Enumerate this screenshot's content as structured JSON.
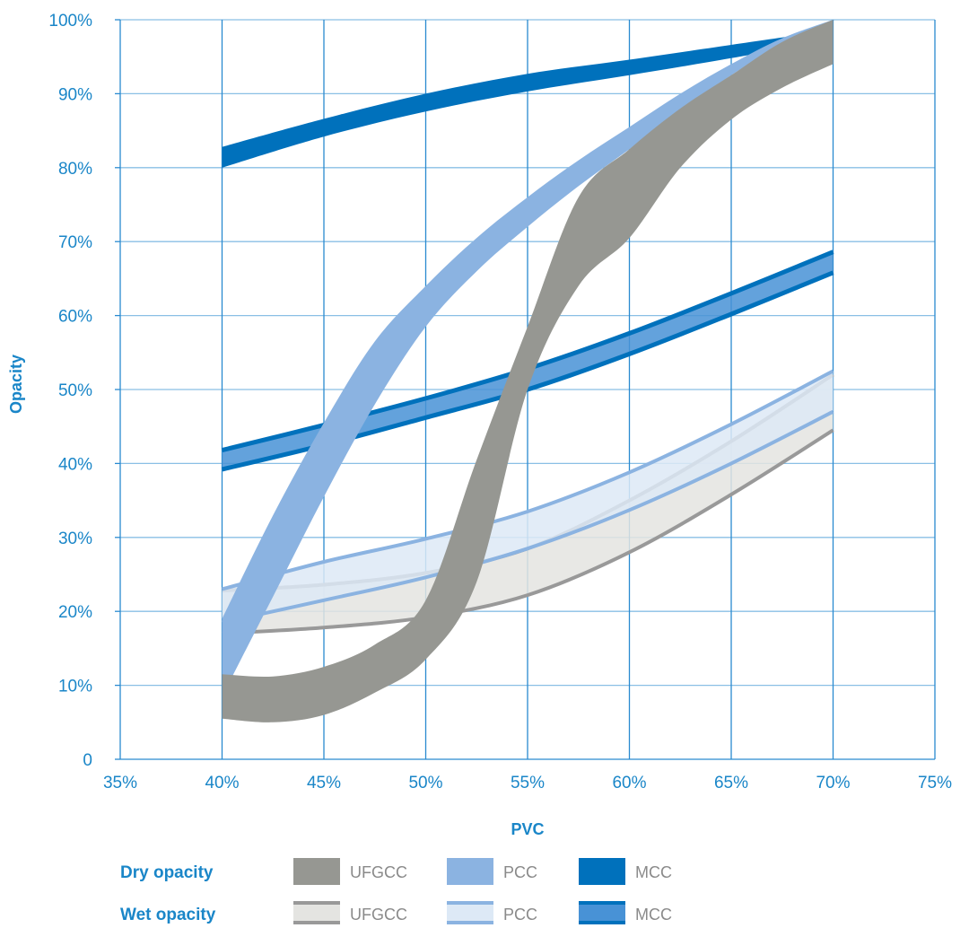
{
  "chart_data": {
    "type": "area",
    "xlabel": "PVC",
    "ylabel": "Opacity",
    "xlim": [
      35,
      75
    ],
    "ylim": [
      0,
      100
    ],
    "x_ticks": [
      "35%",
      "40%",
      "45%",
      "50%",
      "55%",
      "60%",
      "65%",
      "70%",
      "75%"
    ],
    "y_ticks": [
      "0",
      "10%",
      "20%",
      "30%",
      "40%",
      "50%",
      "60%",
      "70%",
      "80%",
      "90%",
      "100%"
    ],
    "grid": true,
    "legend_position": "bottom",
    "legend": {
      "dry_heading": "Dry opacity",
      "wet_heading": "Wet opacity",
      "dry_items": [
        "UFGCC",
        "PCC",
        "MCC"
      ],
      "wet_items": [
        "UFGCC",
        "PCC",
        "MCC"
      ]
    },
    "colors": {
      "grid": "#2a8ad0",
      "text": "#1a86c8",
      "legend_text": "#8a8a8a",
      "ufgcc_dry": "#969792",
      "pcc_dry": "#8bb3e1",
      "mcc_dry": "#0071bc",
      "ufgcc_wet_line": "#999999",
      "ufgcc_wet_fill": "#e4e4e1",
      "pcc_wet_line": "#8bb3e1",
      "pcc_wet_fill": "#dde9f6",
      "mcc_wet_line": "#0071bc",
      "mcc_wet_fill": "#4892d6"
    },
    "series": [
      {
        "key": "ufgcc_wet",
        "kind": "wet",
        "x": [
          40,
          45,
          50,
          55,
          60,
          65,
          70
        ],
        "lower": [
          17,
          17.8,
          19.2,
          22.2,
          28,
          35.8,
          44.5
        ],
        "upper": [
          22.8,
          23.6,
          25.2,
          28.5,
          35,
          43,
          52
        ]
      },
      {
        "key": "pcc_wet",
        "kind": "wet",
        "x": [
          40,
          45,
          50,
          55,
          60,
          65,
          70
        ],
        "lower": [
          18.5,
          21.5,
          24.6,
          28.5,
          33.7,
          40,
          47
        ],
        "upper": [
          23,
          26.7,
          29.8,
          33.5,
          38.8,
          45.3,
          52.5
        ]
      },
      {
        "key": "mcc_wet",
        "kind": "wet",
        "x": [
          40,
          45,
          50,
          55,
          60,
          65,
          70
        ],
        "lower": [
          39.2,
          42.5,
          46.2,
          50,
          54.8,
          60.2,
          65.8
        ],
        "upper": [
          41.8,
          45.2,
          48.8,
          52.8,
          57.6,
          63,
          68.6
        ]
      },
      {
        "key": "mcc_dry",
        "kind": "dry",
        "x": [
          40,
          45,
          50,
          55,
          60,
          65,
          68.5
        ],
        "lower": [
          80,
          84.2,
          87.6,
          90.3,
          92.5,
          94.8,
          96.6
        ],
        "upper": [
          82.8,
          86.6,
          90,
          92.7,
          94.6,
          96.6,
          98
        ]
      },
      {
        "key": "pcc_dry",
        "kind": "dry",
        "x": [
          40,
          42.5,
          45,
          47.5,
          50,
          52.5,
          55,
          57.5,
          60,
          62.5,
          65,
          67.5,
          70
        ],
        "lower": [
          8.5,
          22,
          35.5,
          48,
          58.5,
          66,
          72,
          77.5,
          82.5,
          87.5,
          92.5,
          96.5,
          99
        ],
        "upper": [
          19,
          33,
          45.5,
          56.5,
          64,
          70.5,
          76,
          81,
          85.5,
          90,
          94,
          97.5,
          100
        ]
      },
      {
        "key": "ufgcc_dry",
        "kind": "dry",
        "x": [
          40,
          42.5,
          45,
          47.5,
          50,
          52.5,
          55,
          57.5,
          60,
          62.5,
          65,
          67.5,
          70
        ],
        "lower": [
          5.5,
          5,
          6,
          9,
          13.5,
          24,
          50,
          64,
          70.5,
          80,
          86.5,
          90.8,
          94
        ],
        "upper": [
          11.5,
          11.2,
          12.5,
          15.5,
          21.5,
          40.5,
          58.5,
          76,
          82.5,
          88,
          92.5,
          97,
          100
        ]
      }
    ]
  }
}
